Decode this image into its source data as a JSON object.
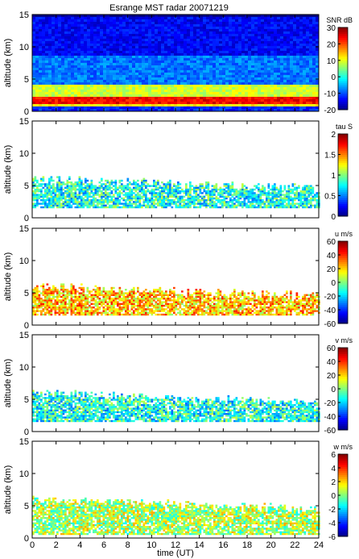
{
  "title": "Esrange MST radar 20071219",
  "xlabel": "time (UT)",
  "chart_data": [
    {
      "type": "heatmap",
      "ylabel": "altitude (km)",
      "xlim": [
        0,
        24
      ],
      "ylim": [
        0,
        15
      ],
      "x_ticks": [
        "0",
        "2",
        "4",
        "6",
        "8",
        "10",
        "12",
        "14",
        "16",
        "18",
        "20",
        "22",
        "24"
      ],
      "y_ticks": [
        "0",
        "5",
        "10",
        "15"
      ],
      "colorbar": {
        "label": "SNR dB",
        "range": [
          -20,
          30
        ],
        "ticks": [
          "-20",
          "-10",
          "0",
          "10",
          "20",
          "30"
        ]
      },
      "layers": [
        {
          "altitude_km": [
            0,
            0.8
          ],
          "value": -12
        },
        {
          "altitude_km": [
            0.8,
            1.5
          ],
          "value": 12
        },
        {
          "altitude_km": [
            1.5,
            2.6
          ],
          "value": 24
        },
        {
          "altitude_km": [
            2.6,
            4.5
          ],
          "value": 9
        },
        {
          "altitude_km": [
            4.5,
            9
          ],
          "value": -8
        },
        {
          "altitude_km": [
            9,
            15
          ],
          "value": -14
        }
      ]
    },
    {
      "type": "heatmap",
      "ylabel": "altitude (km)",
      "xlim": [
        0,
        24
      ],
      "ylim": [
        0,
        15
      ],
      "x_ticks": [
        "0",
        "2",
        "4",
        "6",
        "8",
        "10",
        "12",
        "14",
        "16",
        "18",
        "20",
        "22",
        "24"
      ],
      "y_ticks": [
        "0",
        "5",
        "10",
        "15"
      ],
      "colorbar": {
        "label": "tau S",
        "range": [
          0,
          2
        ],
        "ticks": [
          "0",
          "0.5",
          "1",
          "1.5",
          "2"
        ]
      },
      "echo_region_km": [
        1.5,
        6.5
      ],
      "typical_value": 0.8
    },
    {
      "type": "heatmap",
      "ylabel": "altitude (km)",
      "xlim": [
        0,
        24
      ],
      "ylim": [
        0,
        15
      ],
      "x_ticks": [
        "0",
        "2",
        "4",
        "6",
        "8",
        "10",
        "12",
        "14",
        "16",
        "18",
        "20",
        "22",
        "24"
      ],
      "y_ticks": [
        "0",
        "5",
        "10",
        "15"
      ],
      "colorbar": {
        "label": "u m/s",
        "range": [
          -60,
          60
        ],
        "ticks": [
          "-60",
          "-40",
          "-20",
          "0",
          "20",
          "40",
          "60"
        ]
      },
      "echo_region_km": [
        1.5,
        6.5
      ],
      "typical_value": 22
    },
    {
      "type": "heatmap",
      "ylabel": "altitude (km)",
      "xlim": [
        0,
        24
      ],
      "ylim": [
        0,
        15
      ],
      "x_ticks": [
        "0",
        "2",
        "4",
        "6",
        "8",
        "10",
        "12",
        "14",
        "16",
        "18",
        "20",
        "22",
        "24"
      ],
      "y_ticks": [
        "0",
        "5",
        "10",
        "15"
      ],
      "colorbar": {
        "label": "v m/s",
        "range": [
          -60,
          60
        ],
        "ticks": [
          "-60",
          "-40",
          "-20",
          "0",
          "20",
          "40",
          "60"
        ]
      },
      "echo_region_km": [
        1.5,
        6.5
      ],
      "typical_value": -12
    },
    {
      "type": "heatmap",
      "ylabel": "altitude (km)",
      "xlim": [
        0,
        24
      ],
      "ylim": [
        0,
        15
      ],
      "x_ticks": [
        "0",
        "2",
        "4",
        "6",
        "8",
        "10",
        "12",
        "14",
        "16",
        "18",
        "20",
        "22",
        "24"
      ],
      "y_ticks": [
        "0",
        "5",
        "10",
        "15"
      ],
      "colorbar": {
        "label": "w m/s",
        "range": [
          -6,
          6
        ],
        "ticks": [
          "-6",
          "-4",
          "-2",
          "0",
          "2",
          "4",
          "6"
        ]
      },
      "echo_region_km": [
        0.5,
        6.5
      ],
      "typical_value": 0.5
    }
  ]
}
